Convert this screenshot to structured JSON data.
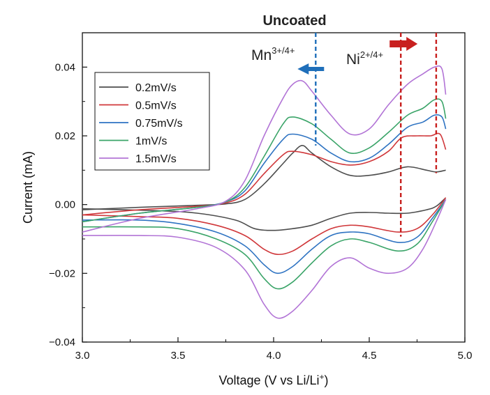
{
  "chart_data": {
    "type": "line",
    "title": "Uncoated",
    "xlabel_main": "Voltage (V vs Li/Li",
    "xlabel_sup": "+",
    "xlabel_end": ")",
    "ylabel": "Current (mA)",
    "xlim": [
      3.0,
      5.0
    ],
    "ylim": [
      -0.04,
      0.05
    ],
    "x_ticks": [
      "3.0",
      "3.5",
      "4.0",
      "4.5",
      "5.0"
    ],
    "y_ticks": [
      "−0.04",
      "−0.02",
      "0.00",
      "0.02",
      "0.04"
    ],
    "grid": false,
    "legend_position": "upper-left",
    "annotations": {
      "mn": {
        "base": "Mn",
        "sup": "3+/4+",
        "x": 4.22,
        "arrow": "left",
        "color": "#1f6fba"
      },
      "ni": {
        "base": "Ni",
        "sup": "2+/4+",
        "lines_x": [
          4.665,
          4.85
        ],
        "arrow": "right",
        "color": "#c8201f"
      }
    },
    "series": [
      {
        "name": "0.2mV/s",
        "color": "#4d4d4d",
        "anodic": [
          [
            3.0,
            -0.0015
          ],
          [
            3.3,
            -0.0008
          ],
          [
            3.6,
            -0.0002
          ],
          [
            3.75,
            0.0002
          ],
          [
            3.85,
            0.0015
          ],
          [
            3.95,
            0.006
          ],
          [
            4.05,
            0.012
          ],
          [
            4.1,
            0.015
          ],
          [
            4.15,
            0.0172
          ],
          [
            4.2,
            0.015
          ],
          [
            4.3,
            0.011
          ],
          [
            4.4,
            0.0085
          ],
          [
            4.5,
            0.0085
          ],
          [
            4.6,
            0.0095
          ],
          [
            4.7,
            0.011
          ],
          [
            4.8,
            0.01
          ],
          [
            4.85,
            0.0095
          ],
          [
            4.9,
            0.01
          ]
        ],
        "cathodic": [
          [
            4.9,
            0.002
          ],
          [
            4.85,
            -0.0005
          ],
          [
            4.8,
            -0.0015
          ],
          [
            4.7,
            -0.0025
          ],
          [
            4.6,
            -0.0025
          ],
          [
            4.5,
            -0.0023
          ],
          [
            4.4,
            -0.0025
          ],
          [
            4.3,
            -0.004
          ],
          [
            4.2,
            -0.006
          ],
          [
            4.1,
            -0.007
          ],
          [
            4.0,
            -0.0075
          ],
          [
            3.9,
            -0.007
          ],
          [
            3.8,
            -0.0045
          ],
          [
            3.6,
            -0.0025
          ],
          [
            3.4,
            -0.0018
          ],
          [
            3.0,
            -0.0012
          ]
        ]
      },
      {
        "name": "0.5mV/s",
        "color": "#d0373a",
        "anodic": [
          [
            3.0,
            -0.003
          ],
          [
            3.3,
            -0.0015
          ],
          [
            3.6,
            -0.0005
          ],
          [
            3.75,
            0.0005
          ],
          [
            3.85,
            0.003
          ],
          [
            3.95,
            0.009
          ],
          [
            4.05,
            0.0145
          ],
          [
            4.1,
            0.0155
          ],
          [
            4.2,
            0.0145
          ],
          [
            4.3,
            0.0125
          ],
          [
            4.4,
            0.0115
          ],
          [
            4.5,
            0.0125
          ],
          [
            4.6,
            0.0155
          ],
          [
            4.67,
            0.0195
          ],
          [
            4.75,
            0.02
          ],
          [
            4.82,
            0.02
          ],
          [
            4.87,
            0.0205
          ],
          [
            4.9,
            0.016
          ]
        ],
        "cathodic": [
          [
            4.9,
            0.002
          ],
          [
            4.83,
            -0.003
          ],
          [
            4.75,
            -0.007
          ],
          [
            4.65,
            -0.008
          ],
          [
            4.5,
            -0.0065
          ],
          [
            4.4,
            -0.006
          ],
          [
            4.3,
            -0.007
          ],
          [
            4.2,
            -0.01
          ],
          [
            4.1,
            -0.0135
          ],
          [
            4.02,
            -0.0145
          ],
          [
            3.95,
            -0.013
          ],
          [
            3.85,
            -0.009
          ],
          [
            3.7,
            -0.006
          ],
          [
            3.5,
            -0.004
          ],
          [
            3.3,
            -0.0035
          ],
          [
            3.0,
            -0.003
          ]
        ]
      },
      {
        "name": "0.75mV/s",
        "color": "#2e73c2",
        "anodic": [
          [
            3.0,
            -0.005
          ],
          [
            3.3,
            -0.0025
          ],
          [
            3.6,
            -0.0008
          ],
          [
            3.75,
            0.0008
          ],
          [
            3.85,
            0.004
          ],
          [
            3.95,
            0.012
          ],
          [
            4.05,
            0.019
          ],
          [
            4.1,
            0.0205
          ],
          [
            4.2,
            0.019
          ],
          [
            4.3,
            0.015
          ],
          [
            4.4,
            0.0125
          ],
          [
            4.5,
            0.0135
          ],
          [
            4.6,
            0.0175
          ],
          [
            4.7,
            0.0225
          ],
          [
            4.78,
            0.024
          ],
          [
            4.84,
            0.026
          ],
          [
            4.88,
            0.0255
          ],
          [
            4.9,
            0.022
          ]
        ],
        "cathodic": [
          [
            4.9,
            0.0015
          ],
          [
            4.83,
            -0.004
          ],
          [
            4.75,
            -0.0095
          ],
          [
            4.65,
            -0.011
          ],
          [
            4.5,
            -0.0085
          ],
          [
            4.4,
            -0.008
          ],
          [
            4.3,
            -0.009
          ],
          [
            4.2,
            -0.013
          ],
          [
            4.1,
            -0.018
          ],
          [
            4.02,
            -0.02
          ],
          [
            3.95,
            -0.0175
          ],
          [
            3.85,
            -0.012
          ],
          [
            3.7,
            -0.008
          ],
          [
            3.5,
            -0.0055
          ],
          [
            3.3,
            -0.0045
          ],
          [
            3.0,
            -0.0045
          ]
        ]
      },
      {
        "name": "1mV/s",
        "color": "#3aa468",
        "anodic": [
          [
            3.0,
            -0.005
          ],
          [
            3.3,
            -0.0025
          ],
          [
            3.6,
            -0.0008
          ],
          [
            3.75,
            0.0008
          ],
          [
            3.85,
            0.005
          ],
          [
            3.95,
            0.014
          ],
          [
            4.05,
            0.0235
          ],
          [
            4.1,
            0.0255
          ],
          [
            4.2,
            0.0235
          ],
          [
            4.3,
            0.019
          ],
          [
            4.4,
            0.015
          ],
          [
            4.5,
            0.0165
          ],
          [
            4.6,
            0.021
          ],
          [
            4.7,
            0.026
          ],
          [
            4.78,
            0.028
          ],
          [
            4.84,
            0.0305
          ],
          [
            4.88,
            0.03
          ],
          [
            4.9,
            0.025
          ]
        ],
        "cathodic": [
          [
            4.9,
            0.0015
          ],
          [
            4.83,
            -0.005
          ],
          [
            4.75,
            -0.0115
          ],
          [
            4.65,
            -0.0135
          ],
          [
            4.5,
            -0.011
          ],
          [
            4.4,
            -0.01
          ],
          [
            4.3,
            -0.012
          ],
          [
            4.2,
            -0.017
          ],
          [
            4.1,
            -0.0225
          ],
          [
            4.02,
            -0.0245
          ],
          [
            3.95,
            -0.0215
          ],
          [
            3.85,
            -0.0145
          ],
          [
            3.7,
            -0.01
          ],
          [
            3.5,
            -0.007
          ],
          [
            3.3,
            -0.0065
          ],
          [
            3.0,
            -0.0065
          ]
        ]
      },
      {
        "name": "1.5mV/s",
        "color": "#b274d6",
        "anodic": [
          [
            3.0,
            -0.008
          ],
          [
            3.3,
            -0.004
          ],
          [
            3.6,
            -0.0012
          ],
          [
            3.75,
            0.001
          ],
          [
            3.85,
            0.007
          ],
          [
            3.95,
            0.02
          ],
          [
            4.05,
            0.031
          ],
          [
            4.1,
            0.035
          ],
          [
            4.15,
            0.036
          ],
          [
            4.2,
            0.033
          ],
          [
            4.3,
            0.026
          ],
          [
            4.4,
            0.0205
          ],
          [
            4.5,
            0.022
          ],
          [
            4.6,
            0.029
          ],
          [
            4.7,
            0.035
          ],
          [
            4.78,
            0.038
          ],
          [
            4.84,
            0.04
          ],
          [
            4.88,
            0.0395
          ],
          [
            4.9,
            0.032
          ]
        ],
        "cathodic": [
          [
            4.9,
            0.0015
          ],
          [
            4.85,
            -0.005
          ],
          [
            4.78,
            -0.013
          ],
          [
            4.7,
            -0.0185
          ],
          [
            4.6,
            -0.02
          ],
          [
            4.5,
            -0.0185
          ],
          [
            4.4,
            -0.0155
          ],
          [
            4.3,
            -0.018
          ],
          [
            4.2,
            -0.025
          ],
          [
            4.1,
            -0.031
          ],
          [
            4.02,
            -0.033
          ],
          [
            3.95,
            -0.029
          ],
          [
            3.85,
            -0.019
          ],
          [
            3.7,
            -0.0125
          ],
          [
            3.5,
            -0.0095
          ],
          [
            3.3,
            -0.009
          ],
          [
            3.0,
            -0.009
          ]
        ]
      }
    ]
  }
}
